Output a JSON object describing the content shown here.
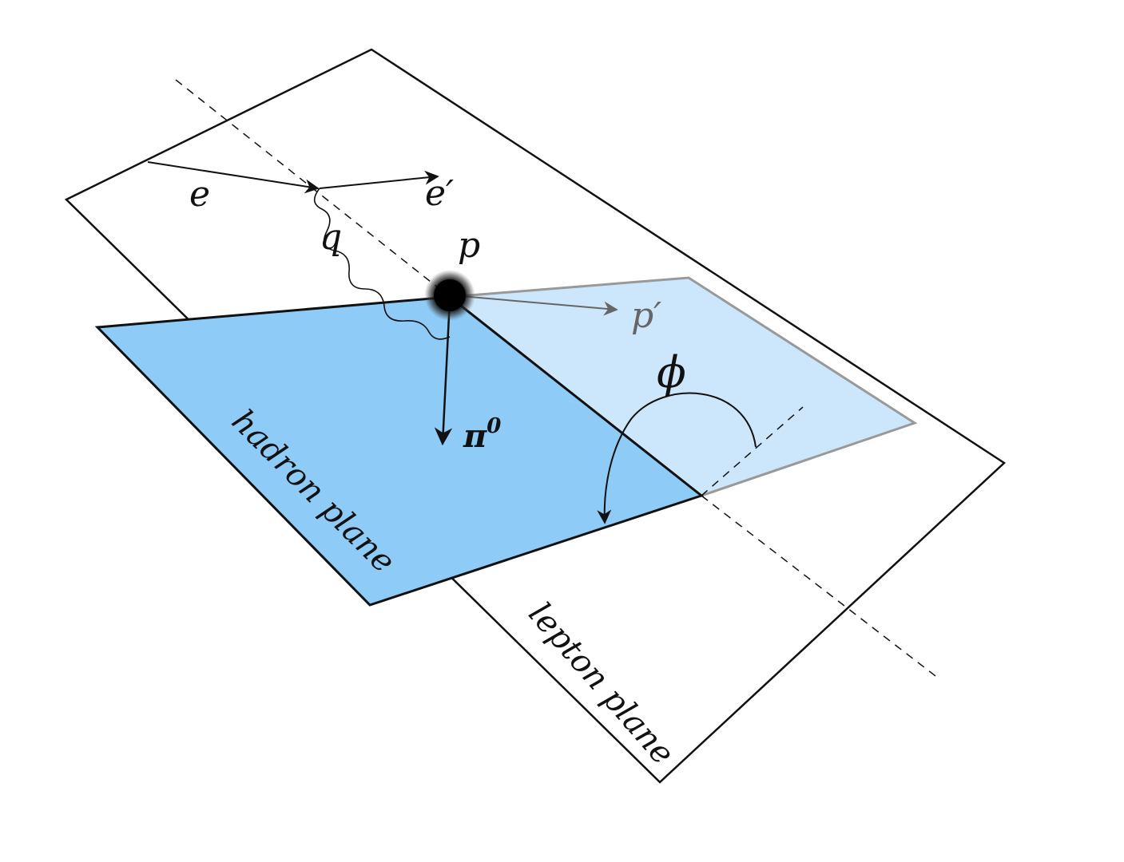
{
  "labels": {
    "electron_in": "e",
    "electron_out": "e′",
    "photon": "q",
    "proton": "p",
    "proton_out": "p′",
    "pion": "π",
    "pion_sup": "0",
    "angle": "ϕ",
    "hadron_plane": "hadron plane",
    "lepton_plane": "lepton plane"
  },
  "colors": {
    "hadron_plane_fill": "#8ecbf7",
    "hadron_plane_light_fill": "#cce7fb",
    "line": "#111111",
    "gray_line": "#888888",
    "background": "#ffffff"
  }
}
